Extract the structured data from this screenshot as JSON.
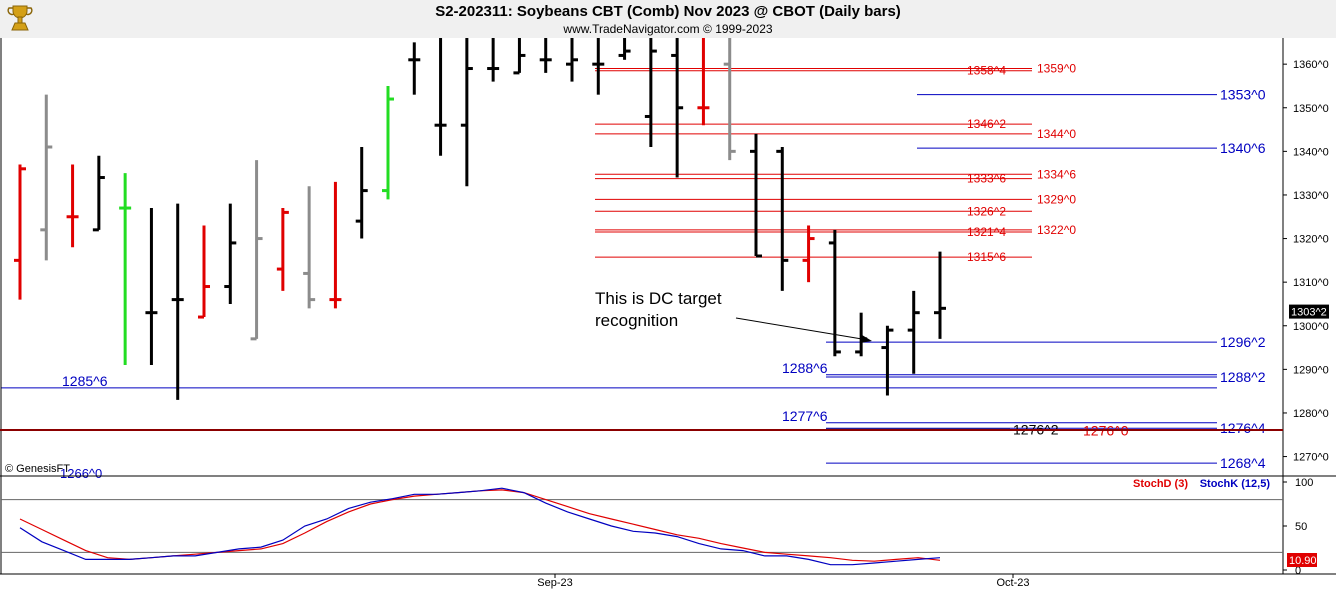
{
  "header": {
    "title": "S2-202311:  Soybeans CBT (Comb) Nov 2023 @ CBOT  (Daily bars)",
    "copyright": "www.TradeNavigator.com © 1999-2023",
    "logo_icon": "gold-trophy-icon"
  },
  "watermark": "© GenesisFT",
  "annotation": "This is DC target recognition",
  "chart_data": [
    {
      "type": "ohlc",
      "bar_period": "daily",
      "price_axis": {
        "range": [
          1266,
          1366
        ],
        "tick_labels": [
          "1360^0",
          "1350^0",
          "1340^0",
          "1330^0",
          "1320^0",
          "1310^0",
          "1300^0",
          "1290^0",
          "1280^0",
          "1270^0"
        ],
        "ticks": [
          1360,
          1350,
          1340,
          1330,
          1320,
          1310,
          1300,
          1290,
          1280,
          1270
        ]
      },
      "last_price_label": "1303^2",
      "last_price": 1303.25,
      "bar_colors": {
        "black": "#000000",
        "red": "#e00000",
        "gray": "#8c8c8c",
        "green": "#22dd22"
      },
      "bars": [
        {
          "o": 1315,
          "h": 1337,
          "l": 1306,
          "c": 1336,
          "color": "red"
        },
        {
          "o": 1322,
          "h": 1353,
          "l": 1315,
          "c": 1341,
          "color": "gray"
        },
        {
          "o": 1325,
          "h": 1337,
          "l": 1318,
          "c": 1325,
          "color": "red"
        },
        {
          "o": 1322,
          "h": 1339,
          "l": 1322,
          "c": 1334,
          "color": "black"
        },
        {
          "o": 1327,
          "h": 1335,
          "l": 1291,
          "c": 1327,
          "color": "green"
        },
        {
          "o": 1303,
          "h": 1327,
          "l": 1291,
          "c": 1303,
          "color": "black"
        },
        {
          "o": 1306,
          "h": 1328,
          "l": 1283,
          "c": 1306,
          "color": "black"
        },
        {
          "o": 1302,
          "h": 1323,
          "l": 1302,
          "c": 1309,
          "color": "red"
        },
        {
          "o": 1309,
          "h": 1328,
          "l": 1305,
          "c": 1319,
          "color": "black"
        },
        {
          "o": 1297,
          "h": 1338,
          "l": 1297,
          "c": 1320,
          "color": "gray"
        },
        {
          "o": 1313,
          "h": 1327,
          "l": 1308,
          "c": 1326,
          "color": "red"
        },
        {
          "o": 1312,
          "h": 1332,
          "l": 1304,
          "c": 1306,
          "color": "gray"
        },
        {
          "o": 1306,
          "h": 1333,
          "l": 1304,
          "c": 1306,
          "color": "red"
        },
        {
          "o": 1324,
          "h": 1341,
          "l": 1320,
          "c": 1331,
          "color": "black"
        },
        {
          "o": 1331,
          "h": 1355,
          "l": 1329,
          "c": 1352,
          "color": "green"
        },
        {
          "o": 1361,
          "h": 1365,
          "l": 1353,
          "c": 1361,
          "color": "black"
        },
        {
          "o": 1346,
          "h": 1366,
          "l": 1339,
          "c": 1346,
          "color": "black"
        },
        {
          "o": 1346,
          "h": 1366,
          "l": 1332,
          "c": 1359,
          "color": "black"
        },
        {
          "o": 1359,
          "h": 1366,
          "l": 1356,
          "c": 1359,
          "color": "black"
        },
        {
          "o": 1358,
          "h": 1366,
          "l": 1358,
          "c": 1362,
          "color": "black"
        },
        {
          "o": 1361,
          "h": 1366,
          "l": 1358,
          "c": 1361,
          "color": "black"
        },
        {
          "o": 1360,
          "h": 1366,
          "l": 1356,
          "c": 1361,
          "color": "black"
        },
        {
          "o": 1360,
          "h": 1366,
          "l": 1353,
          "c": 1360,
          "color": "black"
        },
        {
          "o": 1362,
          "h": 1366,
          "l": 1361,
          "c": 1363,
          "color": "black"
        },
        {
          "o": 1348,
          "h": 1366,
          "l": 1341,
          "c": 1363,
          "color": "black"
        },
        {
          "o": 1362,
          "h": 1366,
          "l": 1334,
          "c": 1350,
          "color": "black"
        },
        {
          "o": 1350,
          "h": 1366,
          "l": 1346,
          "c": 1350,
          "color": "red"
        },
        {
          "o": 1360,
          "h": 1366,
          "l": 1338,
          "c": 1340,
          "color": "gray"
        },
        {
          "o": 1340,
          "h": 1344,
          "l": 1316,
          "c": 1316,
          "color": "black"
        },
        {
          "o": 1340,
          "h": 1341,
          "l": 1308,
          "c": 1315,
          "color": "black"
        },
        {
          "o": 1315,
          "h": 1323,
          "l": 1310,
          "c": 1320,
          "color": "red"
        },
        {
          "o": 1319,
          "h": 1322,
          "l": 1293,
          "c": 1294,
          "color": "black"
        },
        {
          "o": 1294,
          "h": 1303,
          "l": 1293,
          "c": 1297,
          "color": "black"
        },
        {
          "o": 1295,
          "h": 1300,
          "l": 1284,
          "c": 1299,
          "color": "black"
        },
        {
          "o": 1299,
          "h": 1308,
          "l": 1289,
          "c": 1303,
          "color": "black"
        },
        {
          "o": 1303,
          "h": 1317,
          "l": 1297,
          "c": 1304,
          "color": "black"
        }
      ],
      "levels": [
        {
          "label": "1358^4",
          "value": 1358.5,
          "color": "#e00000",
          "style": "short"
        },
        {
          "label": "1359^0",
          "value": 1359,
          "color": "#e00000",
          "style": "long"
        },
        {
          "label": "1353^0",
          "value": 1353,
          "color": "#0000c0",
          "style": "right"
        },
        {
          "label": "1346^2",
          "value": 1346.25,
          "color": "#e00000",
          "style": "short"
        },
        {
          "label": "1344^0",
          "value": 1344,
          "color": "#e00000",
          "style": "long"
        },
        {
          "label": "1340^6",
          "value": 1340.75,
          "color": "#0000c0",
          "style": "right"
        },
        {
          "label": "1333^6",
          "value": 1333.75,
          "color": "#e00000",
          "style": "short"
        },
        {
          "label": "1334^6",
          "value": 1334.75,
          "color": "#e00000",
          "style": "long"
        },
        {
          "label": "1329^0",
          "value": 1329,
          "color": "#e00000",
          "style": "long"
        },
        {
          "label": "1326^2",
          "value": 1326.25,
          "color": "#e00000",
          "style": "short"
        },
        {
          "label": "1321^4",
          "value": 1321.5,
          "color": "#e00000",
          "style": "short"
        },
        {
          "label": "1322^0",
          "value": 1322,
          "color": "#e00000",
          "style": "long"
        },
        {
          "label": "1315^6",
          "value": 1315.75,
          "color": "#e00000",
          "style": "short"
        },
        {
          "label": "1296^2",
          "value": 1296.25,
          "color": "#0000c0",
          "style": "right"
        },
        {
          "label": "1288^6",
          "value": 1288.75,
          "color": "#0000c0",
          "style": "midleft"
        },
        {
          "label": "1288^2",
          "value": 1288.25,
          "color": "#0000c0",
          "style": "right"
        },
        {
          "label": "1285^6",
          "value": 1285.75,
          "color": "#0000c0",
          "style": "full"
        },
        {
          "label": "1277^6",
          "value": 1277.75,
          "color": "#0000c0",
          "style": "midleft"
        },
        {
          "label": "1276^4",
          "value": 1276.5,
          "color": "#0000c0",
          "style": "right"
        },
        {
          "label": "1276^2",
          "value": 1276.25,
          "color": "#000000",
          "style": "lowlabel"
        },
        {
          "label": "1276^0",
          "value": 1276,
          "color": "#e00000",
          "style": "lowlabel2"
        },
        {
          "label": "1268^4",
          "value": 1268.5,
          "color": "#0000c0",
          "style": "right"
        },
        {
          "label": "1266^0",
          "value": 1266,
          "color": "#0000c0",
          "style": "cut"
        }
      ]
    },
    {
      "type": "line",
      "indicator": "Stochastic",
      "y_range": [
        0,
        100
      ],
      "y_ticks": [
        100,
        50,
        0
      ],
      "reference_lines": [
        80,
        20
      ],
      "last_value_label": "10.90",
      "x_tick_labels": [
        "Sep-23",
        "Oct-23"
      ],
      "series": [
        {
          "name": "StochD (3)",
          "color": "#e00000",
          "values": [
            58,
            46,
            34,
            22,
            14,
            12,
            14,
            16,
            18,
            20,
            22,
            24,
            30,
            42,
            55,
            66,
            75,
            80,
            84,
            86,
            88,
            90,
            91,
            88,
            80,
            72,
            64,
            58,
            52,
            46,
            40,
            36,
            30,
            25,
            20,
            18,
            16,
            14,
            11,
            10,
            12,
            14,
            11
          ]
        },
        {
          "name": "StochK (12,5)",
          "color": "#0000c0",
          "values": [
            48,
            32,
            22,
            12,
            12,
            12,
            14,
            16,
            16,
            20,
            24,
            26,
            34,
            50,
            58,
            70,
            77,
            81,
            86,
            86,
            88,
            90,
            93,
            88,
            76,
            66,
            58,
            50,
            44,
            42,
            38,
            30,
            24,
            22,
            16,
            16,
            12,
            6,
            6,
            8,
            10,
            12,
            14
          ]
        }
      ]
    }
  ]
}
